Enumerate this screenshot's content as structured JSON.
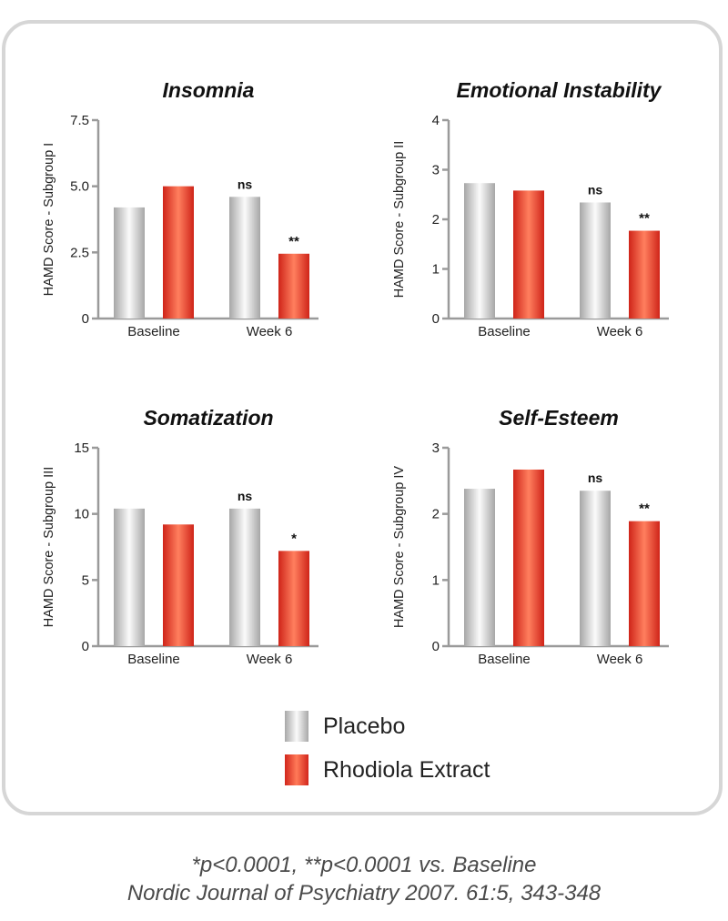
{
  "chart_data": [
    {
      "type": "bar",
      "title": "Insomnia",
      "ylabel": "HAMD Score - Subgroup I",
      "categories": [
        "Baseline",
        "Week 6"
      ],
      "ylim": [
        0,
        7.5
      ],
      "yticks": [
        "0",
        "2.5",
        "5.0",
        "7.5"
      ],
      "series": [
        {
          "name": "Placebo",
          "values": [
            4.2,
            4.6
          ]
        },
        {
          "name": "Rhodiola Extract",
          "values": [
            5.0,
            2.45
          ]
        }
      ],
      "annotations": [
        {
          "category": "Week 6",
          "series": "Placebo",
          "text": "ns"
        },
        {
          "category": "Week 6",
          "series": "Rhodiola Extract",
          "text": "**"
        }
      ]
    },
    {
      "type": "bar",
      "title": "Emotional Instability",
      "ylabel": "HAMD Score - Subgroup II",
      "categories": [
        "Baseline",
        "Week 6"
      ],
      "ylim": [
        0,
        4
      ],
      "yticks": [
        "0",
        "1",
        "2",
        "3",
        "4"
      ],
      "series": [
        {
          "name": "Placebo",
          "values": [
            2.73,
            2.34
          ]
        },
        {
          "name": "Rhodiola Extract",
          "values": [
            2.58,
            1.77
          ]
        }
      ],
      "annotations": [
        {
          "category": "Week 6",
          "series": "Placebo",
          "text": "ns"
        },
        {
          "category": "Week 6",
          "series": "Rhodiola Extract",
          "text": "**"
        }
      ]
    },
    {
      "type": "bar",
      "title": "Somatization",
      "ylabel": "HAMD Score - Subgroup III",
      "categories": [
        "Baseline",
        "Week 6"
      ],
      "ylim": [
        0,
        15
      ],
      "yticks": [
        "0",
        "5",
        "10",
        "15"
      ],
      "series": [
        {
          "name": "Placebo",
          "values": [
            10.4,
            10.4
          ]
        },
        {
          "name": "Rhodiola Extract",
          "values": [
            9.2,
            7.2
          ]
        }
      ],
      "annotations": [
        {
          "category": "Week 6",
          "series": "Placebo",
          "text": "ns"
        },
        {
          "category": "Week 6",
          "series": "Rhodiola Extract",
          "text": "*"
        }
      ]
    },
    {
      "type": "bar",
      "title": "Self-Esteem",
      "ylabel": "HAMD Score - Subgroup IV",
      "categories": [
        "Baseline",
        "Week 6"
      ],
      "ylim": [
        0,
        3
      ],
      "yticks": [
        "0",
        "1",
        "2",
        "3"
      ],
      "series": [
        {
          "name": "Placebo",
          "values": [
            2.38,
            2.35
          ]
        },
        {
          "name": "Rhodiola Extract",
          "values": [
            2.67,
            1.89
          ]
        }
      ],
      "annotations": [
        {
          "category": "Week 6",
          "series": "Placebo",
          "text": "ns"
        },
        {
          "category": "Week 6",
          "series": "Rhodiola Extract",
          "text": "**"
        }
      ]
    }
  ],
  "legend": [
    {
      "label": "Placebo",
      "color": "#c8c8c8"
    },
    {
      "label": "Rhodiola Extract",
      "color": "#e5281c"
    }
  ],
  "footnote": {
    "significance": "*p<0.0001, **p<0.0001 vs. Baseline",
    "source": "Nordic Journal of Psychiatry 2007. 61:5, 343-348"
  }
}
